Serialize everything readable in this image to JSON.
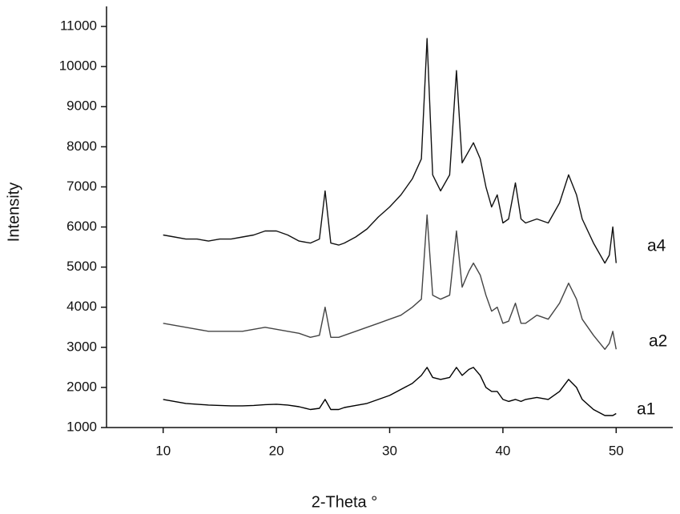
{
  "chart_data": {
    "type": "line",
    "x_label": "2-Theta °",
    "y_label": "Intensity",
    "x": [
      10,
      11,
      12,
      13,
      14,
      15,
      16,
      17,
      18,
      19,
      20,
      21,
      22,
      23,
      23.8,
      24.3,
      24.8,
      25.5,
      26,
      27,
      28,
      29,
      30,
      31,
      32,
      32.8,
      33.3,
      33.8,
      34.5,
      35.3,
      35.9,
      36.4,
      37,
      37.4,
      38,
      38.5,
      39,
      39.5,
      40,
      40.5,
      41.1,
      41.6,
      42,
      43,
      44,
      45,
      45.8,
      46.5,
      47,
      48,
      49,
      49.4,
      49.7,
      50
    ],
    "series": [
      {
        "name": "a4",
        "color": "#111111",
        "values": [
          5800,
          5750,
          5700,
          5700,
          5650,
          5700,
          5700,
          5750,
          5800,
          5900,
          5900,
          5800,
          5650,
          5600,
          5700,
          6900,
          5600,
          5550,
          5600,
          5750,
          5950,
          6250,
          6500,
          6800,
          7200,
          7700,
          10700,
          7300,
          6900,
          7300,
          9900,
          7600,
          7900,
          8100,
          7700,
          7000,
          6500,
          6800,
          6100,
          6200,
          7100,
          6200,
          6100,
          6200,
          6100,
          6600,
          7300,
          6800,
          6200,
          5600,
          5100,
          5300,
          6000,
          5100
        ]
      },
      {
        "name": "a2",
        "color": "#444444",
        "values": [
          3600,
          3550,
          3500,
          3450,
          3400,
          3400,
          3400,
          3400,
          3450,
          3500,
          3450,
          3400,
          3350,
          3250,
          3300,
          4000,
          3250,
          3250,
          3300,
          3400,
          3500,
          3600,
          3700,
          3800,
          4000,
          4200,
          6300,
          4300,
          4200,
          4300,
          5900,
          4500,
          4900,
          5100,
          4800,
          4300,
          3900,
          4000,
          3600,
          3650,
          4100,
          3600,
          3600,
          3800,
          3700,
          4100,
          4600,
          4200,
          3700,
          3300,
          2950,
          3100,
          3400,
          2950
        ]
      },
      {
        "name": "a1",
        "color": "#000000",
        "values": [
          1700,
          1650,
          1600,
          1580,
          1560,
          1550,
          1540,
          1540,
          1550,
          1570,
          1580,
          1560,
          1520,
          1450,
          1480,
          1700,
          1450,
          1450,
          1500,
          1550,
          1600,
          1700,
          1800,
          1950,
          2100,
          2300,
          2500,
          2250,
          2200,
          2250,
          2500,
          2300,
          2450,
          2500,
          2300,
          2000,
          1900,
          1900,
          1700,
          1650,
          1700,
          1650,
          1700,
          1750,
          1700,
          1900,
          2200,
          2000,
          1700,
          1450,
          1300,
          1300,
          1300,
          1350
        ]
      }
    ],
    "xlim": [
      5,
      55
    ],
    "xticks": [
      10,
      20,
      30,
      40,
      50
    ],
    "ylim": [
      1000,
      11500
    ],
    "yticks": [
      1000,
      2000,
      3000,
      4000,
      5000,
      6000,
      7000,
      8000,
      9000,
      10000,
      11000
    ]
  }
}
